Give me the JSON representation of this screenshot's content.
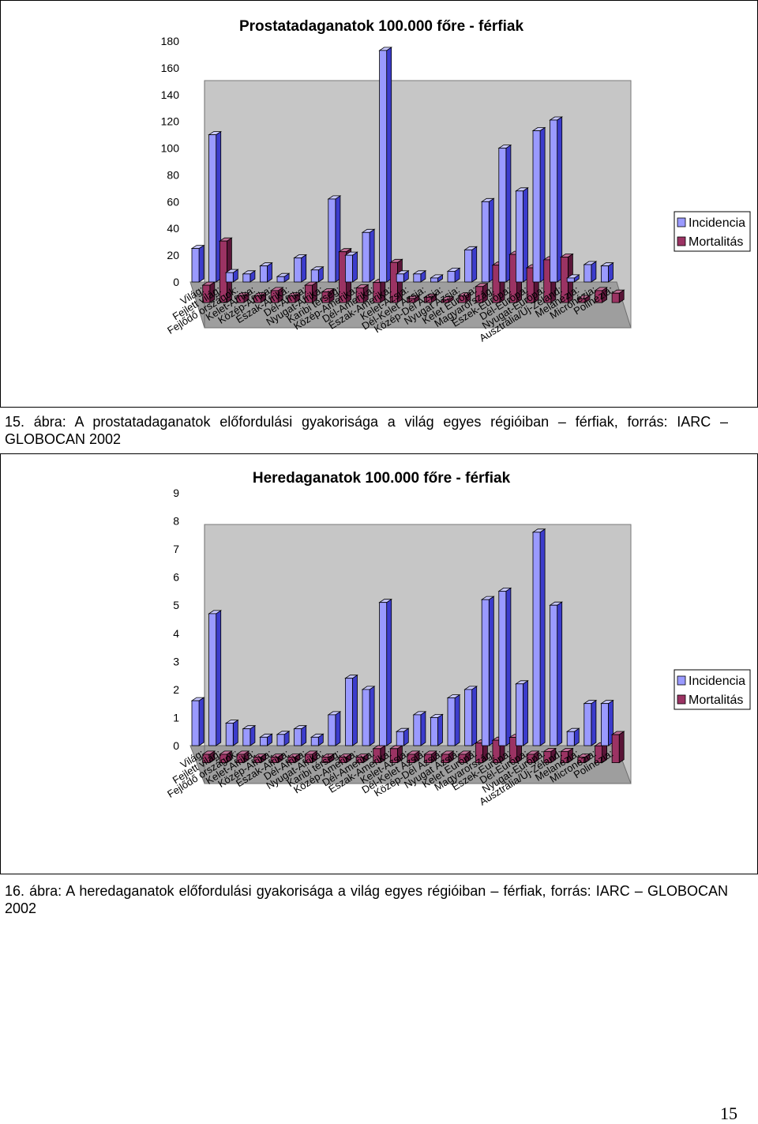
{
  "series_colors": {
    "incidence_front": "#9a9aff",
    "incidence_side": "#3c3ccc",
    "incidence_top": "#c8c8ff",
    "mortality_front": "#9b3363",
    "mortality_side": "#5a1538",
    "mortality_top": "#c26f97"
  },
  "chart_data": [
    {
      "type": "bar",
      "title": "Prostatadaganatok 100.000 főre - férfiak",
      "categories": [
        "Világ:",
        "Fejlett világ:",
        "Fejlődő országok:",
        "Kelet-Afrika:",
        "Közép-Afrika:",
        "Észak-Afrika:",
        "Dél-Afrika:",
        "Nyugat-Afrika:",
        "Karibi térség:",
        "Közép-Amerika:",
        "Dél-Amerika:",
        "Észak-Amerika:",
        "Kelet-Ázsia:",
        "Dél-Kelet Ázsia:",
        "Közép-Dél Ázsia:",
        "Nyugat Ázsia:",
        "Kelet Európa:",
        "Magyarország:",
        "Észek-Európa:",
        "Dél-Európa:",
        "Nyugat-Európa:",
        "Ausztrália/Új-Zéland:",
        "Melanézia:",
        "Micronézia:",
        "Polinézia:"
      ],
      "series": [
        {
          "name": "Incidencia",
          "values": [
            25,
            110,
            7,
            6,
            12,
            4,
            18,
            9,
            62,
            20,
            37,
            173,
            6,
            6,
            3,
            8,
            24,
            60,
            100,
            68,
            113,
            121,
            3,
            13,
            12
          ]
        },
        {
          "name": "Mortalitás",
          "values": [
            13,
            46,
            5,
            5,
            9,
            5,
            13,
            8,
            38,
            11,
            15,
            30,
            3,
            4,
            2,
            5,
            12,
            28,
            36,
            26,
            32,
            34,
            3,
            9,
            7
          ]
        }
      ],
      "yticks": [
        0,
        20,
        40,
        60,
        80,
        100,
        120,
        140,
        160,
        180
      ],
      "ylim": [
        0,
        180
      ]
    },
    {
      "type": "bar",
      "title": "Heredaganatok 100.000 főre - férfiak",
      "categories": [
        "Világ:",
        "Fejlett világ:",
        "Fejlődő országok:",
        "Kelet-Afrika:",
        "Közép-Afrika:",
        "Észak-Afrika:",
        "Dél-Afrika:",
        "Nyugat-Afrika:",
        "Karibi térség:",
        "Közép-Amerika:",
        "Dél-Amerika:",
        "Észak-Amerika:",
        "Kelet-Ázsia:",
        "Dél-Kelet Ázsia:",
        "Közép-Dél Ázsia:",
        "Nyugat Ázsia:",
        "Kelet Európa:",
        "Magyarország:",
        "Észek-Európa:",
        "Dél-Európa:",
        "Nyugat-Európa:",
        "Ausztrália/Új-Zéland:",
        "Melanézia:",
        "Micronézia:",
        "Polinézia:"
      ],
      "series": [
        {
          "name": "Incidencia",
          "values": [
            1.6,
            4.7,
            0.8,
            0.6,
            0.3,
            0.4,
            0.6,
            0.3,
            1.1,
            2.4,
            2.0,
            5.1,
            0.5,
            1.1,
            1.0,
            1.7,
            2.0,
            5.2,
            5.5,
            2.2,
            7.6,
            5.0,
            0.5,
            1.5,
            1.5
          ]
        },
        {
          "name": "Mortalitás",
          "values": [
            0.3,
            0.3,
            0.3,
            0.2,
            0.2,
            0.2,
            0.3,
            0.2,
            0.2,
            0.2,
            0.5,
            0.5,
            0.3,
            0.3,
            0.3,
            0.3,
            0.7,
            0.8,
            0.9,
            0.3,
            0.4,
            0.4,
            0.2,
            0.6,
            1.0
          ]
        }
      ],
      "yticks": [
        0,
        1,
        2,
        3,
        4,
        5,
        6,
        7,
        8,
        9
      ],
      "ylim": [
        0,
        9
      ]
    }
  ],
  "captions": [
    "15. ábra: A prostatadaganatok előfordulási gyakorisága a világ egyes régióiban – férfiak, forrás: IARC – GLOBOCAN 2002",
    "16. ábra: A heredaganatok előfordulási gyakorisága a világ egyes régióiban – férfiak, forrás: IARC – GLOBOCAN 2002"
  ],
  "page_number": "15"
}
